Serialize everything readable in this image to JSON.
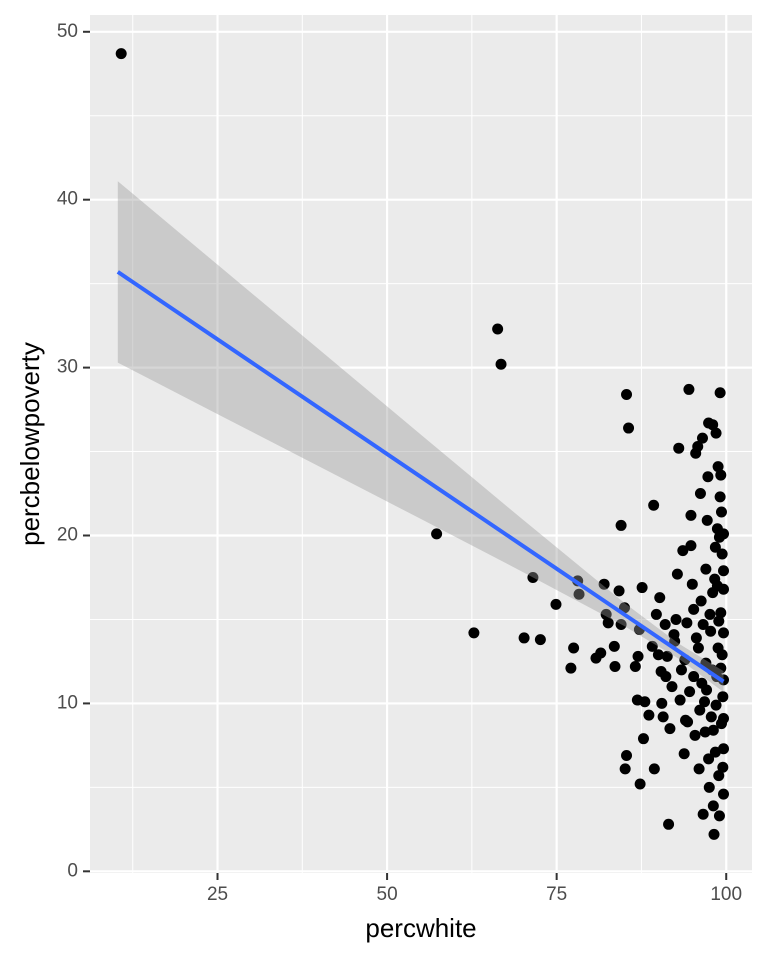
{
  "chart_data": {
    "type": "scatter",
    "x_label": "percwhite",
    "y_label": "percbelowpoverty",
    "xlim": [
      6.2,
      103.8
    ],
    "ylim": [
      -0.1,
      51.0
    ],
    "xticks": [
      25,
      50,
      75,
      100
    ],
    "yticks": [
      0,
      10,
      20,
      30,
      40,
      50
    ],
    "x_minor_grid": [
      12.5,
      37.5,
      62.5,
      87.5
    ],
    "y_minor_grid": [
      5,
      15,
      25,
      35,
      45
    ],
    "grid": true,
    "panel_color": "#ebebeb",
    "grid_color": "#ffffff",
    "point_color": "#000000",
    "line_color": "#3366ff",
    "band_color": "#999999",
    "x": [
      10.8,
      66.3,
      66.8,
      57.3,
      62.8,
      71.5,
      70.2,
      72.6,
      74.9,
      77.1,
      77.5,
      78.1,
      78.3,
      80.8,
      81.5,
      82.0,
      82.3,
      82.6,
      83.5,
      83.6,
      84.2,
      84.5,
      84.5,
      85.0,
      85.3,
      85.6,
      85.3,
      85.1,
      86.6,
      86.9,
      87.0,
      87.2,
      87.3,
      87.6,
      87.8,
      88.0,
      88.6,
      89.1,
      89.3,
      89.4,
      89.7,
      90.2,
      90.4,
      90.5,
      90.7,
      91.0,
      91.3,
      91.5,
      91.7,
      92.0,
      92.4,
      92.6,
      92.8,
      93.0,
      93.2,
      93.4,
      93.6,
      93.8,
      94.0,
      94.2,
      94.5,
      94.8,
      94.8,
      95.0,
      95.2,
      95.4,
      95.5,
      95.8,
      95.9,
      96.0,
      96.2,
      96.3,
      96.5,
      96.6,
      96.8,
      97.0,
      97.0,
      97.2,
      97.3,
      97.4,
      97.5,
      97.7,
      97.8,
      98.0,
      98.0,
      98.1,
      98.2,
      98.3,
      98.4,
      98.5,
      98.6,
      98.7,
      98.8,
      98.8,
      99.0,
      99.0,
      99.1,
      99.2,
      99.2,
      99.3,
      99.3,
      99.4,
      99.4,
      99.5,
      99.5,
      99.6,
      99.6,
      99.1,
      98.9,
      98.5,
      97.9,
      97.6,
      96.9,
      96.4,
      95.6,
      94.6,
      93.9,
      92.3,
      91.1,
      90.0,
      99.6,
      99.6,
      99.6,
      99.6,
      99.6,
      99.6,
      99.2,
      98.9,
      98.7,
      98.4,
      98.1,
      97.4,
      97.1,
      96.6,
      96.1,
      95.2,
      94.3
    ],
    "y": [
      48.7,
      32.3,
      30.2,
      20.1,
      14.2,
      17.5,
      13.9,
      13.8,
      15.9,
      12.1,
      13.3,
      17.3,
      16.5,
      12.7,
      13.0,
      17.1,
      15.3,
      14.8,
      13.4,
      12.2,
      16.7,
      20.6,
      14.7,
      15.7,
      28.4,
      26.4,
      6.9,
      6.1,
      12.2,
      10.2,
      12.8,
      14.4,
      5.2,
      16.9,
      7.9,
      10.1,
      9.3,
      13.4,
      21.8,
      6.1,
      15.3,
      16.3,
      11.9,
      10.0,
      9.2,
      14.7,
      12.8,
      2.8,
      8.5,
      11.0,
      13.7,
      15.0,
      17.7,
      25.2,
      10.2,
      12.0,
      19.1,
      7.0,
      9.0,
      14.8,
      28.7,
      19.4,
      21.2,
      17.1,
      11.6,
      8.1,
      24.9,
      25.3,
      13.3,
      6.1,
      22.5,
      16.1,
      25.8,
      3.4,
      10.1,
      18.0,
      12.4,
      20.9,
      23.5,
      26.7,
      5.0,
      14.3,
      9.2,
      26.6,
      16.6,
      3.9,
      2.2,
      17.4,
      7.1,
      26.1,
      11.6,
      20.4,
      13.3,
      24.1,
      19.9,
      3.3,
      28.5,
      23.6,
      15.4,
      21.4,
      8.8,
      18.9,
      12.9,
      10.4,
      6.2,
      16.8,
      14.2,
      22.3,
      5.7,
      9.9,
      12.0,
      15.3,
      8.3,
      11.2,
      13.9,
      10.7,
      12.6,
      14.1,
      11.6,
      12.9,
      17.9,
      11.4,
      9.1,
      7.3,
      4.6,
      20.1,
      12.1,
      14.9,
      17.0,
      19.3,
      8.4,
      6.7,
      10.8,
      14.7,
      9.6,
      15.6,
      8.9
    ],
    "fit": {
      "x": [
        10.3,
        99.6
      ],
      "y": [
        35.7,
        11.3
      ]
    },
    "band": {
      "x": [
        10.3,
        25,
        40,
        55,
        70,
        85,
        93,
        99.6
      ],
      "lower": [
        30.3,
        27.23,
        24.11,
        20.98,
        17.83,
        14.6,
        12.66,
        10.68
      ],
      "upper": [
        41.1,
        36.13,
        31.07,
        26.0,
        20.95,
        15.98,
        13.56,
        11.92
      ]
    }
  }
}
